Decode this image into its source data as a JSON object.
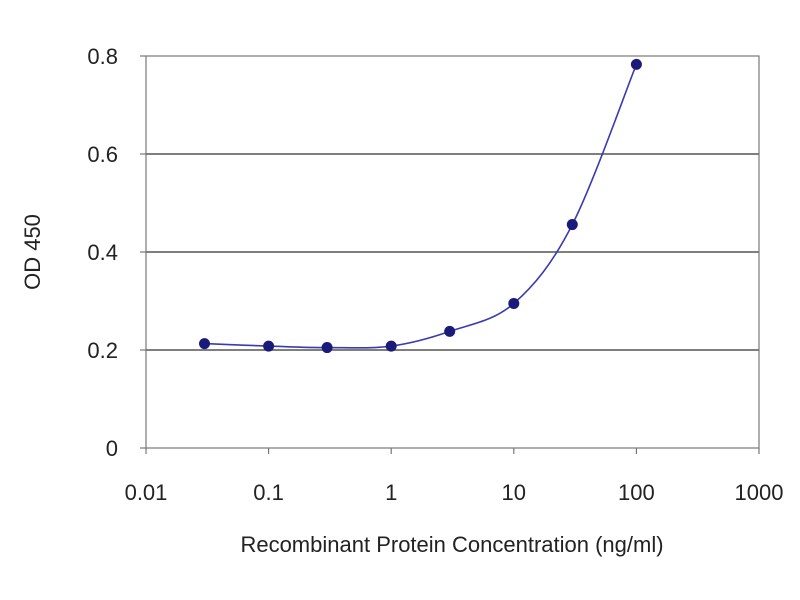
{
  "chart_data": {
    "type": "scatter",
    "xscale": "log",
    "title": "",
    "xlabel": "Recombinant Protein Concentration (ng/ml)",
    "ylabel": "OD 450",
    "xlim": [
      0.01,
      1000
    ],
    "ylim": [
      0,
      0.8
    ],
    "xticks": [
      0.01,
      0.1,
      1,
      10,
      100,
      1000
    ],
    "xtick_labels": [
      "0.01",
      "0.1",
      "1",
      "10",
      "100",
      "1000"
    ],
    "yticks": [
      0,
      0.2,
      0.4,
      0.6,
      0.8
    ],
    "ytick_labels": [
      "0",
      "0.2",
      "0.4",
      "0.6",
      "0.8"
    ],
    "grid": "horizontal",
    "fit_line": true,
    "series": [
      {
        "x": [
          0.03,
          0.1,
          0.3,
          1,
          3,
          10,
          30,
          100
        ],
        "y": [
          0.213,
          0.208,
          0.205,
          0.208,
          0.238,
          0.295,
          0.456,
          0.783
        ]
      }
    ],
    "colors": {
      "marker": "#1a1a7a",
      "line": "#3b3bb0",
      "grid": "#555555",
      "frame": "#777777"
    }
  }
}
